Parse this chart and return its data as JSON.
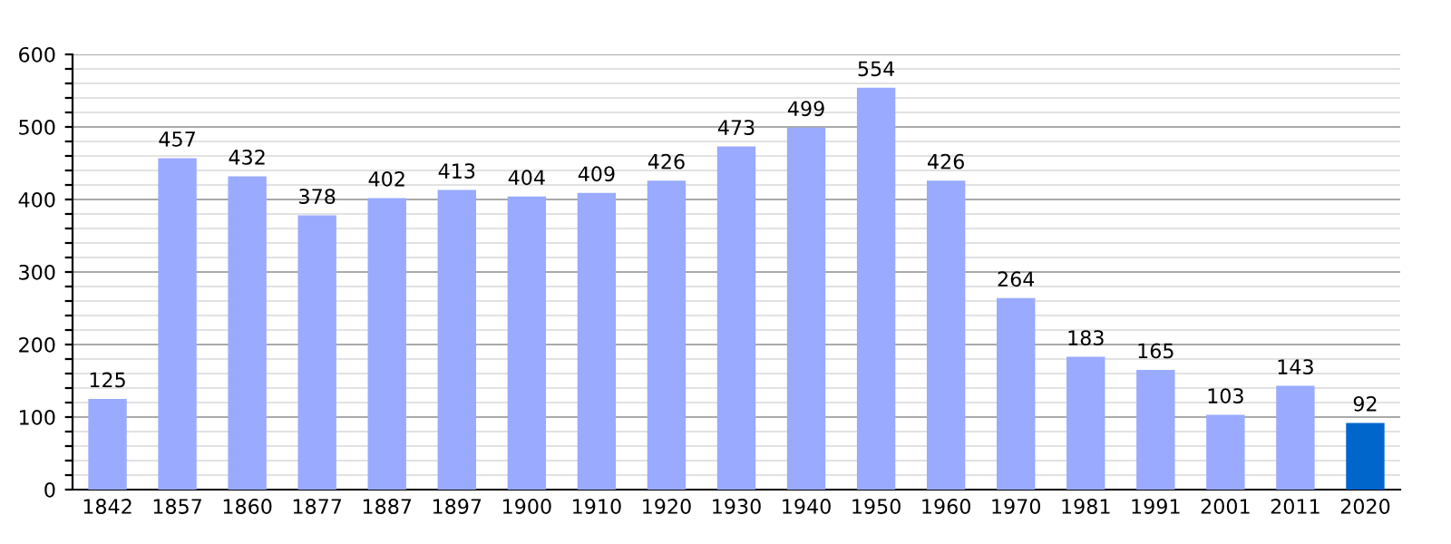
{
  "chart_data": {
    "type": "bar",
    "categories": [
      "1842",
      "1857",
      "1860",
      "1877",
      "1887",
      "1897",
      "1900",
      "1910",
      "1920",
      "1930",
      "1940",
      "1950",
      "1960",
      "1970",
      "1981",
      "1991",
      "2001",
      "2011",
      "2020"
    ],
    "values": [
      125,
      457,
      432,
      378,
      402,
      413,
      404,
      409,
      426,
      473,
      499,
      554,
      426,
      264,
      183,
      165,
      103,
      143,
      92
    ],
    "colors": [
      "#99aaff",
      "#99aaff",
      "#99aaff",
      "#99aaff",
      "#99aaff",
      "#99aaff",
      "#99aaff",
      "#99aaff",
      "#99aaff",
      "#99aaff",
      "#99aaff",
      "#99aaff",
      "#99aaff",
      "#99aaff",
      "#99aaff",
      "#99aaff",
      "#99aaff",
      "#99aaff",
      "#0066cc"
    ],
    "ylim": [
      0,
      600
    ],
    "yticks": [
      0,
      {
        "value": 20,
        "label": null
      },
      {
        "value": 40,
        "label": null
      },
      {
        "value": 60,
        "label": null
      },
      {
        "value": 80,
        "label": null
      },
      100,
      {
        "value": 120,
        "label": null
      },
      {
        "value": 140,
        "label": null
      },
      {
        "value": 160,
        "label": null
      },
      {
        "value": 180,
        "label": null
      },
      200,
      {
        "value": 220,
        "label": null
      },
      {
        "value": 240,
        "label": null
      },
      {
        "value": 260,
        "label": null
      },
      {
        "value": 280,
        "label": null
      },
      300,
      {
        "value": 320,
        "label": null
      },
      {
        "value": 340,
        "label": null
      },
      {
        "value": 360,
        "label": null
      },
      {
        "value": 380,
        "label": null
      },
      400,
      {
        "value": 420,
        "label": null
      },
      {
        "value": 440,
        "label": null
      },
      {
        "value": 460,
        "label": null
      },
      {
        "value": 480,
        "label": null
      },
      500,
      {
        "value": 520,
        "label": null
      },
      {
        "value": 540,
        "label": null
      },
      {
        "value": 560,
        "label": null
      },
      {
        "value": 580,
        "label": null
      },
      600
    ],
    "grid": "y",
    "data_labels": true
  }
}
